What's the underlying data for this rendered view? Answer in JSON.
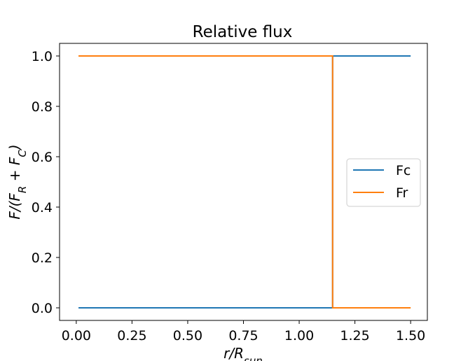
{
  "chart_data": {
    "type": "line",
    "title": "Relative flux",
    "xlabel": "r/R_sun",
    "ylabel": "F/(F_R + F_C)",
    "xlim": [
      -0.075,
      1.575
    ],
    "ylim": [
      -0.05,
      1.05
    ],
    "xticks": [
      0.0,
      0.25,
      0.5,
      0.75,
      1.0,
      1.25,
      1.5
    ],
    "xtick_labels": [
      "0.00",
      "0.25",
      "0.50",
      "0.75",
      "1.00",
      "1.25",
      "1.50"
    ],
    "yticks": [
      0.0,
      0.2,
      0.4,
      0.6,
      0.8,
      1.0
    ],
    "ytick_labels": [
      "0.0",
      "0.2",
      "0.4",
      "0.6",
      "0.8",
      "1.0"
    ],
    "grid": false,
    "legend_position": "center-right",
    "series": [
      {
        "name": "Fc",
        "color": "#1f77b4",
        "x": [
          0.01,
          1.15,
          1.15,
          1.5
        ],
        "y": [
          0.0,
          0.0,
          1.0,
          1.0
        ]
      },
      {
        "name": "Fr",
        "color": "#ff7f0e",
        "x": [
          0.01,
          1.15,
          1.15,
          1.5
        ],
        "y": [
          1.0,
          1.0,
          0.0,
          0.0
        ]
      }
    ]
  }
}
